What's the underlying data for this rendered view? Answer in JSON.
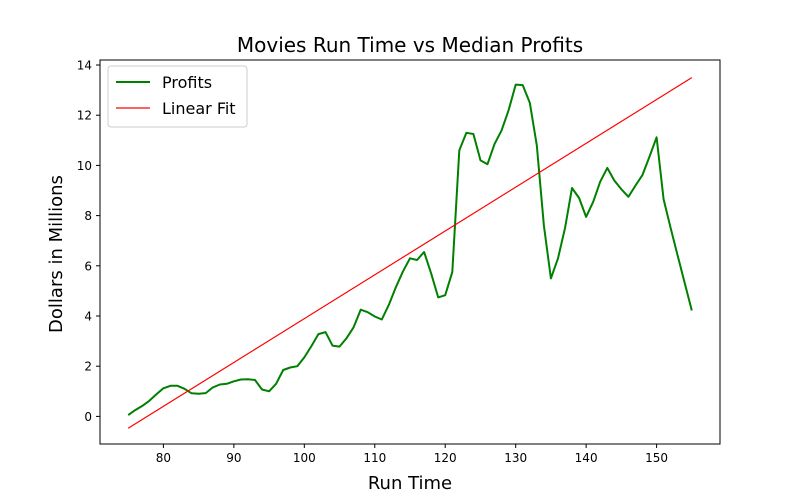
{
  "chart_data": {
    "type": "line",
    "title": "Movies Run Time vs Median Profits",
    "xlabel": "Run Time",
    "ylabel": "Dollars in Millions",
    "xlim": [
      71,
      159
    ],
    "ylim": [
      -1.1,
      14.2
    ],
    "xticks": [
      80,
      90,
      100,
      110,
      120,
      130,
      140,
      150
    ],
    "yticks": [
      0,
      2,
      4,
      6,
      8,
      10,
      12,
      14
    ],
    "grid": false,
    "legend_position": "top-left",
    "series": [
      {
        "name": "Profits",
        "color": "#008000",
        "x": [
          75,
          76,
          77,
          78,
          79,
          80,
          81,
          82,
          83,
          84,
          85,
          86,
          87,
          88,
          89,
          90,
          91,
          92,
          93,
          94,
          95,
          96,
          97,
          98,
          99,
          100,
          101,
          102,
          103,
          104,
          105,
          106,
          107,
          108,
          109,
          110,
          111,
          112,
          113,
          114,
          115,
          116,
          117,
          118,
          119,
          120,
          121,
          122,
          123,
          124,
          125,
          126,
          127,
          128,
          129,
          130,
          131,
          132,
          133,
          134,
          135,
          136,
          137,
          138,
          139,
          140,
          141,
          142,
          143,
          144,
          145,
          146,
          147,
          148,
          149,
          150,
          151,
          152,
          153,
          154,
          155
        ],
        "y": [
          0.05,
          0.25,
          0.42,
          0.62,
          0.88,
          1.12,
          1.22,
          1.22,
          1.1,
          0.92,
          0.9,
          0.93,
          1.15,
          1.27,
          1.3,
          1.4,
          1.47,
          1.48,
          1.45,
          1.07,
          1.0,
          1.3,
          1.85,
          1.95,
          2.0,
          2.35,
          2.8,
          3.28,
          3.36,
          2.82,
          2.78,
          3.12,
          3.55,
          4.25,
          4.15,
          3.98,
          3.86,
          4.45,
          5.15,
          5.78,
          6.3,
          6.23,
          6.55,
          5.7,
          4.74,
          4.83,
          5.75,
          10.6,
          11.3,
          11.25,
          10.2,
          10.05,
          10.85,
          11.4,
          12.2,
          13.22,
          13.2,
          12.5,
          10.8,
          7.6,
          5.5,
          6.3,
          7.5,
          9.1,
          8.7,
          7.95,
          8.55,
          9.35,
          9.9,
          9.4,
          9.05,
          8.75,
          9.2,
          9.62,
          10.35,
          11.12,
          8.65,
          7.5,
          6.4,
          5.3,
          4.22
        ]
      },
      {
        "name": "Linear Fit",
        "color": "#ff0000",
        "x": [
          75,
          155
        ],
        "y": [
          -0.47,
          13.5
        ]
      }
    ]
  }
}
